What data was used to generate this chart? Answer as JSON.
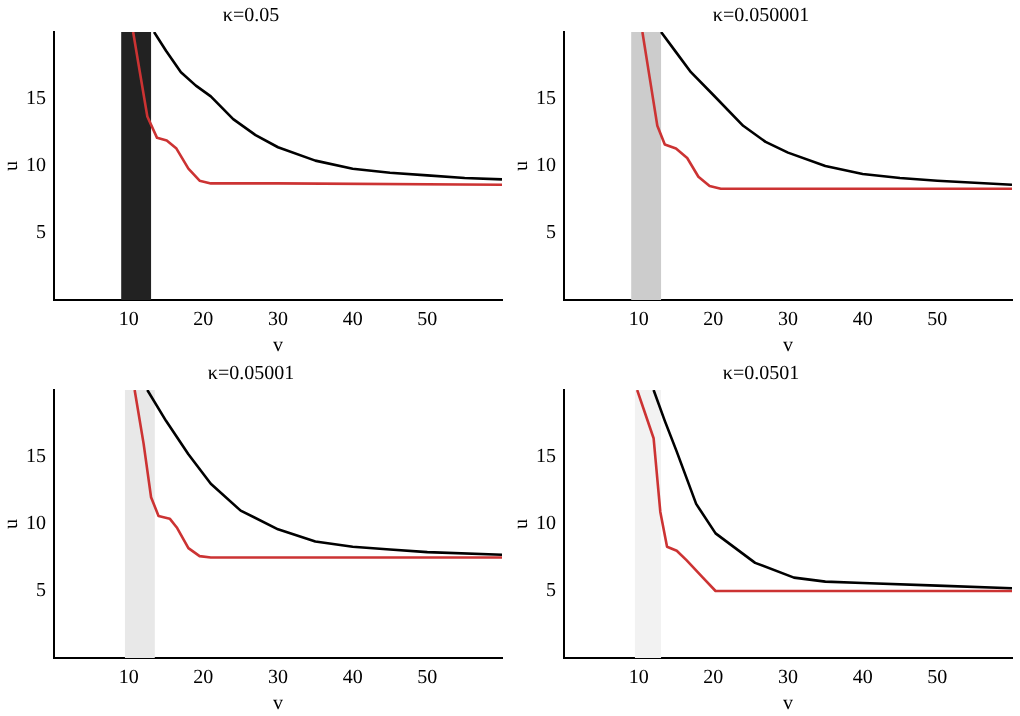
{
  "chart_data": [
    {
      "type": "line",
      "title": "κ=0.05",
      "xlabel": "v",
      "ylabel": "u",
      "xlim": [
        0,
        60
      ],
      "ylim": [
        0,
        20
      ],
      "xticks": [
        10,
        20,
        30,
        40,
        50
      ],
      "yticks": [
        5,
        10,
        15
      ],
      "grid": false,
      "legend": false,
      "marker": "none",
      "line_style": "solid",
      "bands": [
        {
          "axis": "x",
          "from": 9,
          "to": 13,
          "color": "#222222"
        }
      ],
      "series": [
        {
          "color": "#000000",
          "x": [
            13.4,
            15,
            17,
            19,
            21,
            24,
            27,
            30,
            35,
            40,
            45,
            50,
            55,
            60
          ],
          "values": [
            20,
            18.6,
            17,
            16,
            15.2,
            13.5,
            12.3,
            11.4,
            10.4,
            9.8,
            9.5,
            9.3,
            9.1,
            9.0
          ]
        },
        {
          "color": "#cc3333",
          "x": [
            10.6,
            11.5,
            12.5,
            13.8,
            15.1,
            16.4,
            18,
            19.5,
            21,
            30,
            60
          ],
          "values": [
            20,
            17,
            13.7,
            12.1,
            11.9,
            11.3,
            9.8,
            8.9,
            8.7,
            8.7,
            8.6
          ]
        }
      ]
    },
    {
      "type": "line",
      "title": "κ=0.050001",
      "xlabel": "v",
      "ylabel": "u",
      "xlim": [
        0,
        60
      ],
      "ylim": [
        0,
        20
      ],
      "xticks": [
        10,
        20,
        30,
        40,
        50
      ],
      "yticks": [
        5,
        10,
        15
      ],
      "grid": false,
      "legend": false,
      "marker": "none",
      "line_style": "solid",
      "bands": [
        {
          "axis": "x",
          "from": 9,
          "to": 13,
          "color": "#cccccc"
        }
      ],
      "series": [
        {
          "color": "#000000",
          "x": [
            13,
            15,
            17,
            20,
            24,
            27,
            30,
            35,
            40,
            45,
            50,
            60
          ],
          "values": [
            20,
            18.5,
            17,
            15.3,
            13,
            11.8,
            11,
            10,
            9.4,
            9.1,
            8.9,
            8.6
          ]
        },
        {
          "color": "#cc3333",
          "x": [
            10.5,
            11.5,
            12.5,
            13.5,
            15,
            16.5,
            18,
            19.5,
            21,
            60
          ],
          "values": [
            20,
            16.5,
            13,
            11.6,
            11.3,
            10.6,
            9.2,
            8.5,
            8.3,
            8.3
          ]
        }
      ]
    },
    {
      "type": "line",
      "title": "κ=0.05001",
      "xlabel": "v",
      "ylabel": "u",
      "xlim": [
        0,
        60
      ],
      "ylim": [
        0,
        20
      ],
      "xticks": [
        10,
        20,
        30,
        40,
        50
      ],
      "yticks": [
        5,
        10,
        15
      ],
      "grid": false,
      "legend": false,
      "marker": "none",
      "line_style": "solid",
      "bands": [
        {
          "axis": "x",
          "from": 9.5,
          "to": 13.5,
          "color": "#e8e8e8"
        }
      ],
      "series": [
        {
          "color": "#000000",
          "x": [
            12.5,
            15,
            18,
            21,
            25,
            30,
            35,
            40,
            45,
            50,
            60
          ],
          "values": [
            20,
            17.7,
            15.2,
            13,
            11,
            9.6,
            8.7,
            8.3,
            8.1,
            7.9,
            7.7
          ]
        },
        {
          "color": "#cc3333",
          "x": [
            10.8,
            12,
            13,
            14,
            15.5,
            16.5,
            18,
            19.5,
            21,
            60
          ],
          "values": [
            20,
            16,
            12,
            10.6,
            10.4,
            9.7,
            8.2,
            7.6,
            7.5,
            7.5
          ]
        }
      ]
    },
    {
      "type": "line",
      "title": "κ=0.0501",
      "xlabel": "v",
      "ylabel": "u",
      "xlim": [
        0,
        60
      ],
      "ylim": [
        0,
        20
      ],
      "xticks": [
        10,
        20,
        30,
        40,
        50
      ],
      "yticks": [
        5,
        10,
        15
      ],
      "grid": false,
      "legend": false,
      "marker": "none",
      "line_style": "solid",
      "bands": [
        {
          "axis": "x",
          "from": 9.5,
          "to": 13,
          "color": "#f2f2f2"
        }
      ],
      "series": [
        {
          "color": "#000000",
          "x": [
            12,
            13.5,
            15.1,
            17.7,
            20.3,
            25.6,
            30.8,
            35,
            40,
            50,
            60
          ],
          "values": [
            20,
            17.7,
            15.4,
            11.5,
            9.3,
            7.1,
            6.0,
            5.7,
            5.6,
            5.4,
            5.2
          ]
        },
        {
          "color": "#cc3333",
          "x": [
            9.8,
            12,
            12.9,
            13.8,
            15.1,
            16.4,
            18.6,
            20.3,
            60
          ],
          "values": [
            20,
            16.4,
            10.9,
            8.3,
            8.0,
            7.3,
            6.0,
            5.0,
            5.0
          ]
        }
      ]
    }
  ]
}
